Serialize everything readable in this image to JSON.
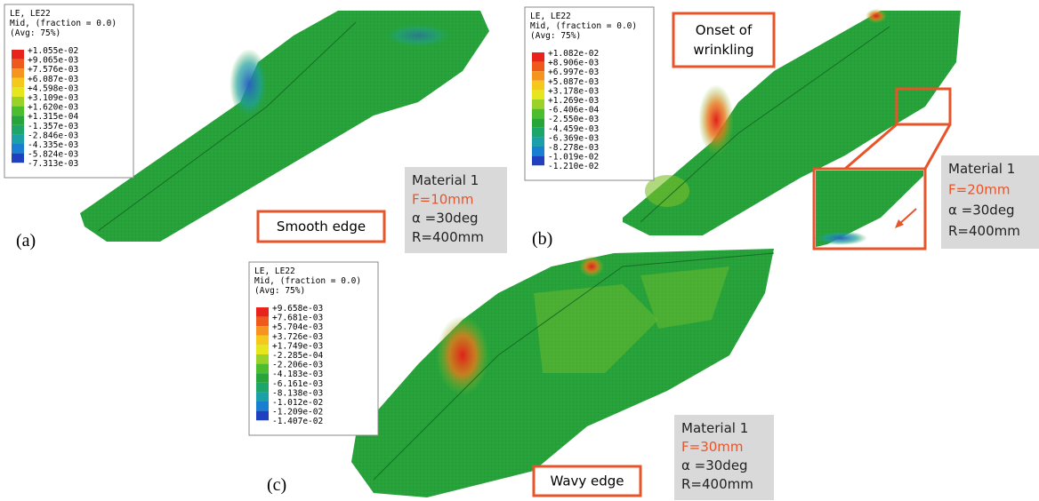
{
  "panels": [
    {
      "label": "(a)",
      "legend": {
        "header": [
          "LE, LE22",
          "Mid, (fraction = 0.0)",
          "(Avg: 75%)"
        ],
        "values": [
          "+1.055e-02",
          "+9.065e-03",
          "+7.576e-03",
          "+6.087e-03",
          "+4.598e-03",
          "+3.109e-03",
          "+1.620e-03",
          "+1.315e-04",
          "-1.357e-03",
          "-2.846e-03",
          "-4.335e-03",
          "-5.824e-03",
          "-7.313e-03"
        ]
      },
      "info": [
        "Material 1",
        "F=10mm",
        "α =30deg",
        "R=400mm"
      ],
      "annotation": "Smooth edge"
    },
    {
      "label": "(b)",
      "legend": {
        "header": [
          "LE, LE22",
          "Mid, (fraction = 0.0)",
          "(Avg: 75%)"
        ],
        "values": [
          "+1.082e-02",
          "+8.906e-03",
          "+6.997e-03",
          "+5.087e-03",
          "+3.178e-03",
          "+1.269e-03",
          "-6.406e-04",
          "-2.550e-03",
          "-4.459e-03",
          "-6.369e-03",
          "-8.278e-03",
          "-1.019e-02",
          "-1.210e-02"
        ]
      },
      "info": [
        "Material 1",
        "F=20mm",
        "α =30deg",
        "R=400mm"
      ],
      "annotation": "Onset of wrinkling"
    },
    {
      "label": "(c)",
      "legend": {
        "header": [
          "LE, LE22",
          "Mid, (fraction = 0.0)",
          "(Avg: 75%)"
        ],
        "values": [
          "+9.658e-03",
          "+7.681e-03",
          "+5.704e-03",
          "+3.726e-03",
          "+1.749e-03",
          "-2.285e-04",
          "-2.206e-03",
          "-4.183e-03",
          "-6.161e-03",
          "-8.138e-03",
          "-1.012e-02",
          "-1.209e-02",
          "-1.407e-02"
        ]
      },
      "info": [
        "Material 1",
        "F=30mm",
        "α =30deg",
        "R=400mm"
      ],
      "annotation": "Wavy edge"
    }
  ]
}
